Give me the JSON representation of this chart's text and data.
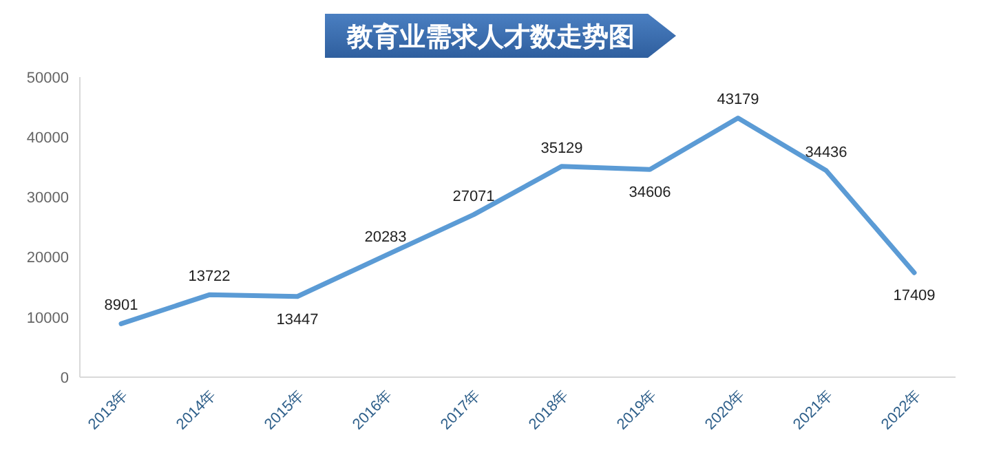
{
  "chart_data": {
    "type": "line",
    "title": "教育业需求人才数走势图",
    "categories": [
      "2013年",
      "2014年",
      "2015年",
      "2016年",
      "2017年",
      "2018年",
      "2019年",
      "2020年",
      "2021年",
      "2022年"
    ],
    "series": [
      {
        "color": "#5b9bd5",
        "values": [
          8901,
          13722,
          13447,
          20283,
          27071,
          35129,
          34606,
          43179,
          34436,
          17409
        ]
      }
    ],
    "ylim": [
      0,
      50000
    ],
    "yticks": [
      0,
      10000,
      20000,
      30000,
      40000,
      50000
    ],
    "grid": false,
    "legend": false,
    "marker": "none",
    "line_style": "solid",
    "data_labels": true
  }
}
